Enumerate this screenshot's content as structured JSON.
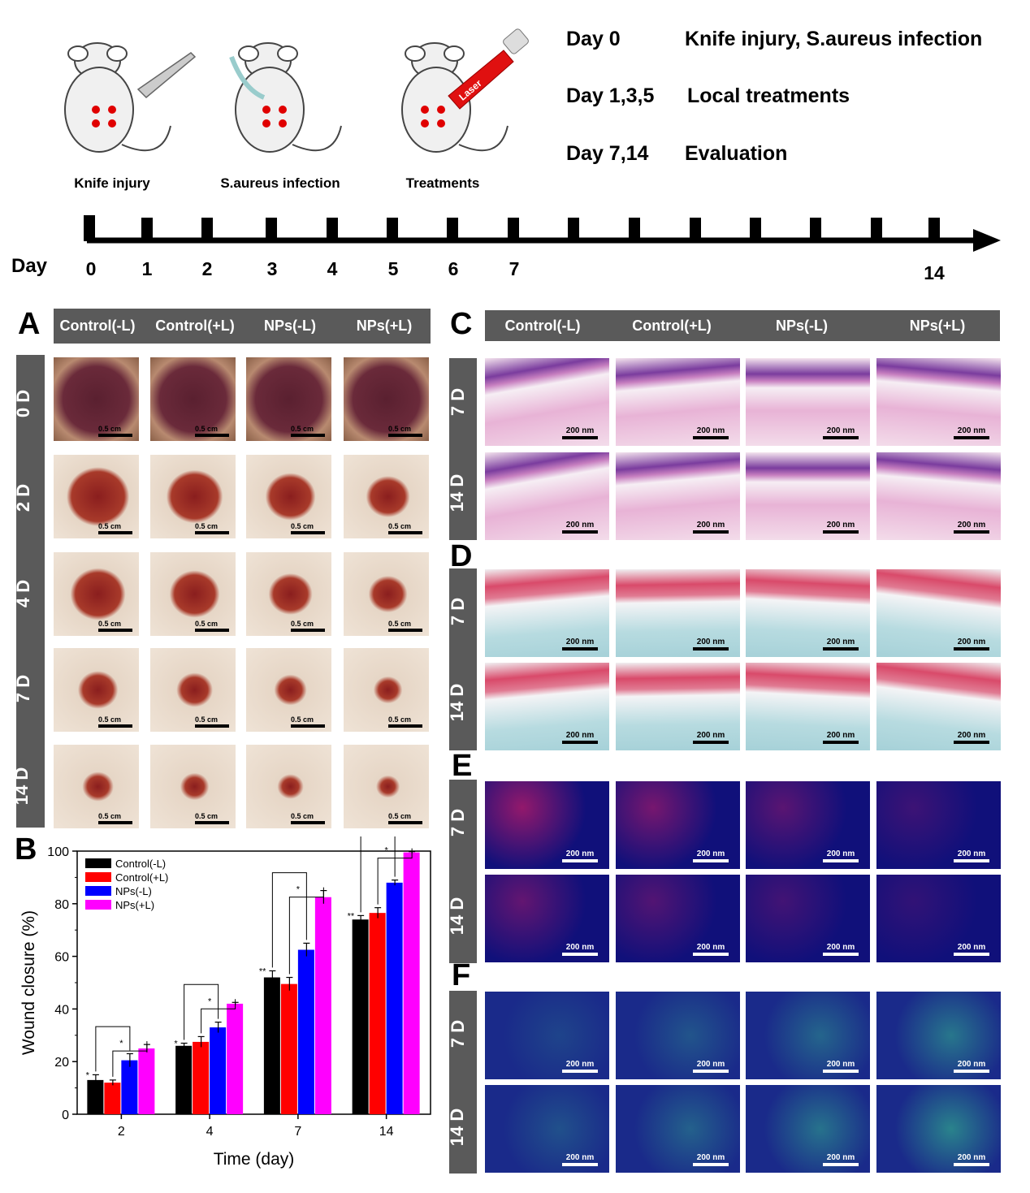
{
  "schematic": {
    "step_labels": [
      "Knife injury",
      "S.aureus infection",
      "Treatments"
    ],
    "laser_label": "Laser",
    "schedule": [
      {
        "day": "Day 0",
        "event": "Knife injury, S.aureus infection"
      },
      {
        "day": "Day 1,3,5",
        "event": "Local treatments"
      },
      {
        "day": "Day 7,14",
        "event": "Evaluation"
      }
    ],
    "timeline_label": "Day",
    "timeline_days": [
      "0",
      "1",
      "2",
      "3",
      "4",
      "5",
      "6",
      "7",
      "14"
    ]
  },
  "panels": {
    "A": "A",
    "B": "B",
    "C": "C",
    "D": "D",
    "E": "E",
    "F": "F"
  },
  "groups": [
    "Control(-L)",
    "Control(+L)",
    "NPs(-L)",
    "NPs(+L)"
  ],
  "panelA": {
    "rows": [
      "0 D",
      "2 D",
      "4 D",
      "7 D",
      "14 D"
    ],
    "scale_label": "0.5 cm"
  },
  "histo": {
    "rows": [
      "7 D",
      "14 D"
    ],
    "scale_label": "200 nm"
  },
  "chart_data": {
    "type": "bar",
    "ylabel": "Wound closure (%)",
    "xlabel": "Time (day)",
    "categories": [
      "2",
      "4",
      "7",
      "14"
    ],
    "ylim": [
      0,
      100
    ],
    "yticks": [
      "0",
      "20",
      "40",
      "60",
      "80",
      "100"
    ],
    "legend_position": "top-left",
    "series": [
      {
        "name": "Control(-L)",
        "color": "#000000",
        "values": [
          13,
          26,
          52,
          74
        ],
        "errors": [
          2,
          1,
          2.5,
          1.5
        ]
      },
      {
        "name": "Control(+L)",
        "color": "#ff0000",
        "values": [
          12,
          27.5,
          49.5,
          76.5
        ],
        "errors": [
          1,
          2,
          2.5,
          2
        ]
      },
      {
        "name": "NPs(-L)",
        "color": "#0000ff",
        "values": [
          20.5,
          33,
          62.5,
          88
        ],
        "errors": [
          2.5,
          2,
          2.5,
          1
        ]
      },
      {
        "name": "NPs(+L)",
        "color": "#ff00ff",
        "values": [
          25,
          42,
          82.5,
          99.5
        ],
        "errors": [
          1.5,
          0.5,
          2.5,
          0.3
        ]
      }
    ],
    "significance": [
      {
        "category": "2",
        "labels": [
          "*",
          "*"
        ]
      },
      {
        "category": "4",
        "labels": [
          "*",
          "*"
        ]
      },
      {
        "category": "7",
        "labels": [
          "**",
          "*"
        ]
      },
      {
        "category": "14",
        "labels": [
          "**",
          "*"
        ]
      }
    ]
  },
  "colors": {
    "header_gray": "#5a5a5a",
    "he_pink": "#e8b3d6",
    "he_purple": "#7a3c9e",
    "masson_blue": "#b7dbe0",
    "masson_red": "#d94a6a",
    "fluor_dark_blue": "#10107a",
    "fluor_red": "#ff2060",
    "fluor_green": "#40ff90"
  }
}
